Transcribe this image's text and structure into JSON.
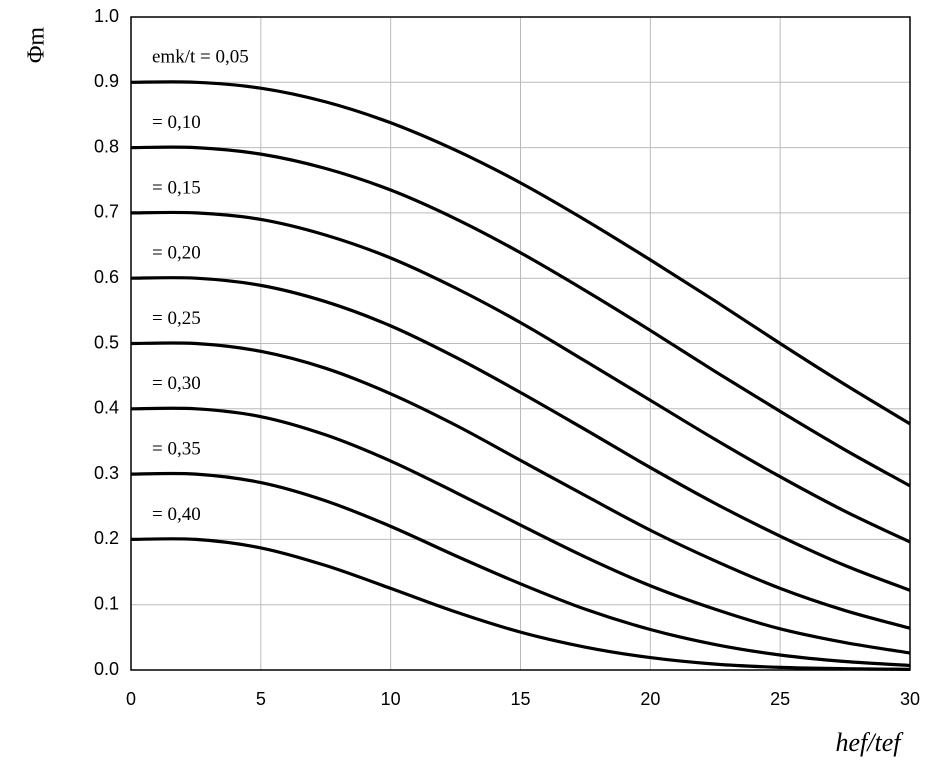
{
  "chart_data": {
    "type": "line",
    "x_label": "hef/tef",
    "y_label": "Φm",
    "x": [
      0,
      2.5,
      5,
      7.5,
      10,
      12.5,
      15,
      17.5,
      20,
      22.5,
      25,
      27.5,
      30
    ],
    "series": [
      {
        "name": "emk/t = 0,05",
        "color": "#000000",
        "values": [
          0.9,
          0.9,
          0.891,
          0.87,
          0.838,
          0.796,
          0.746,
          0.689,
          0.628,
          0.565,
          0.5,
          0.437,
          0.377
        ]
      },
      {
        "name": "= 0,10",
        "color": "#000000",
        "values": [
          0.8,
          0.8,
          0.79,
          0.768,
          0.735,
          0.691,
          0.639,
          0.581,
          0.52,
          0.457,
          0.396,
          0.337,
          0.282
        ]
      },
      {
        "name": "= 0,15",
        "color": "#000000",
        "values": [
          0.7,
          0.7,
          0.69,
          0.666,
          0.631,
          0.585,
          0.532,
          0.473,
          0.413,
          0.353,
          0.296,
          0.243,
          0.196
        ]
      },
      {
        "name": "= 0,20",
        "color": "#000000",
        "values": [
          0.6,
          0.6,
          0.589,
          0.564,
          0.527,
          0.479,
          0.425,
          0.368,
          0.31,
          0.255,
          0.205,
          0.16,
          0.122
        ]
      },
      {
        "name": "= 0,25",
        "color": "#000000",
        "values": [
          0.5,
          0.5,
          0.488,
          0.462,
          0.423,
          0.375,
          0.321,
          0.267,
          0.214,
          0.167,
          0.125,
          0.091,
          0.064
        ]
      },
      {
        "name": "= 0,30",
        "color": "#000000",
        "values": [
          0.4,
          0.4,
          0.388,
          0.36,
          0.32,
          0.272,
          0.222,
          0.173,
          0.129,
          0.093,
          0.063,
          0.042,
          0.026
        ]
      },
      {
        "name": "= 0,35",
        "color": "#000000",
        "values": [
          0.3,
          0.3,
          0.287,
          0.259,
          0.22,
          0.175,
          0.132,
          0.093,
          0.062,
          0.039,
          0.023,
          0.013,
          0.007
        ]
      },
      {
        "name": "= 0,40",
        "color": "#000000",
        "values": [
          0.2,
          0.2,
          0.187,
          0.16,
          0.125,
          0.089,
          0.058,
          0.035,
          0.019,
          0.009,
          0.004,
          0.002,
          0.001
        ]
      }
    ],
    "xlim": [
      0,
      30
    ],
    "xticks": [
      0,
      5,
      10,
      15,
      20,
      25,
      30
    ],
    "ylim": [
      0,
      1
    ],
    "yticks": [
      {
        "value": 0,
        "label": "0.0"
      },
      0.1,
      0.2,
      0.3,
      0.4,
      0.5,
      0.6,
      0.7,
      0.8,
      0.9,
      {
        "value": 1,
        "label": "1.0"
      }
    ],
    "grid": true
  }
}
